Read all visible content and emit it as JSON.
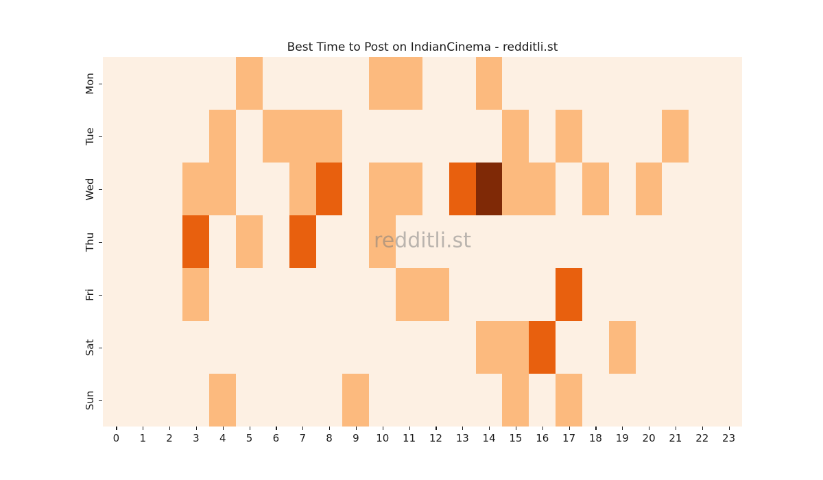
{
  "page": {
    "background_color": "#ffffff"
  },
  "chart_data": {
    "type": "heatmap",
    "title": "Best Time to Post on IndianCinema - redditli.st",
    "watermark": "redditli.st",
    "xlabel": "",
    "ylabel": "",
    "x_labels": [
      "0",
      "1",
      "2",
      "3",
      "4",
      "5",
      "6",
      "7",
      "8",
      "9",
      "10",
      "11",
      "12",
      "13",
      "14",
      "15",
      "16",
      "17",
      "18",
      "19",
      "20",
      "21",
      "22",
      "23"
    ],
    "y_labels": [
      "Mon",
      "Tue",
      "Wed",
      "Thu",
      "Fri",
      "Sat",
      "Sun"
    ],
    "colormap": "Oranges",
    "value_levels": [
      0,
      1,
      2,
      3
    ],
    "value_colors": [
      "#fdf0e3",
      "#fcba7e",
      "#e8600e",
      "#7f2906"
    ],
    "grid": false,
    "legend": "none",
    "matrix": [
      [
        0,
        0,
        0,
        0,
        0,
        1,
        0,
        0,
        0,
        0,
        1,
        1,
        0,
        0,
        1,
        0,
        0,
        0,
        0,
        0,
        0,
        0,
        0,
        0
      ],
      [
        0,
        0,
        0,
        0,
        1,
        0,
        1,
        1,
        1,
        0,
        0,
        0,
        0,
        0,
        0,
        1,
        0,
        1,
        0,
        0,
        0,
        1,
        0,
        0
      ],
      [
        0,
        0,
        0,
        1,
        1,
        0,
        0,
        1,
        2,
        0,
        1,
        1,
        0,
        2,
        3,
        1,
        1,
        0,
        1,
        0,
        1,
        0,
        0,
        0
      ],
      [
        0,
        0,
        0,
        2,
        0,
        1,
        0,
        2,
        0,
        0,
        1,
        0,
        0,
        0,
        0,
        0,
        0,
        0,
        0,
        0,
        0,
        0,
        0,
        0
      ],
      [
        0,
        0,
        0,
        1,
        0,
        0,
        0,
        0,
        0,
        0,
        0,
        1,
        1,
        0,
        0,
        0,
        0,
        2,
        0,
        0,
        0,
        0,
        0,
        0
      ],
      [
        0,
        0,
        0,
        0,
        0,
        0,
        0,
        0,
        0,
        0,
        0,
        0,
        0,
        0,
        1,
        1,
        2,
        0,
        0,
        1,
        0,
        0,
        0,
        0
      ],
      [
        0,
        0,
        0,
        0,
        1,
        0,
        0,
        0,
        0,
        1,
        0,
        0,
        0,
        0,
        0,
        1,
        0,
        1,
        0,
        0,
        0,
        0,
        0,
        0
      ]
    ]
  }
}
